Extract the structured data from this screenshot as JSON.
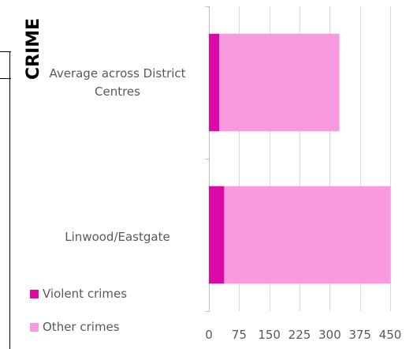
{
  "heading": "CRIME",
  "colors": {
    "violent": "#d90aa6",
    "other": "#f99ae0",
    "grid": "#d9d9d9",
    "axis": "#bfbfbf",
    "label": "#595959"
  },
  "chart_data": {
    "type": "bar",
    "orientation": "horizontal",
    "stacked": true,
    "categories": [
      "Average across District Centres",
      "Linwood/Eastgate"
    ],
    "category_lines": [
      [
        "Average across District",
        "Centres"
      ],
      [
        "Linwood/Eastgate"
      ]
    ],
    "series": [
      {
        "name": "Violent crimes",
        "values": [
          26,
          38
        ]
      },
      {
        "name": "Other crimes",
        "values": [
          298,
          413
        ]
      }
    ],
    "xlim": [
      0,
      450
    ],
    "xticks": [
      0,
      75,
      150,
      225,
      300,
      375,
      450
    ],
    "grid": true,
    "legend_position": "bottom-left"
  }
}
